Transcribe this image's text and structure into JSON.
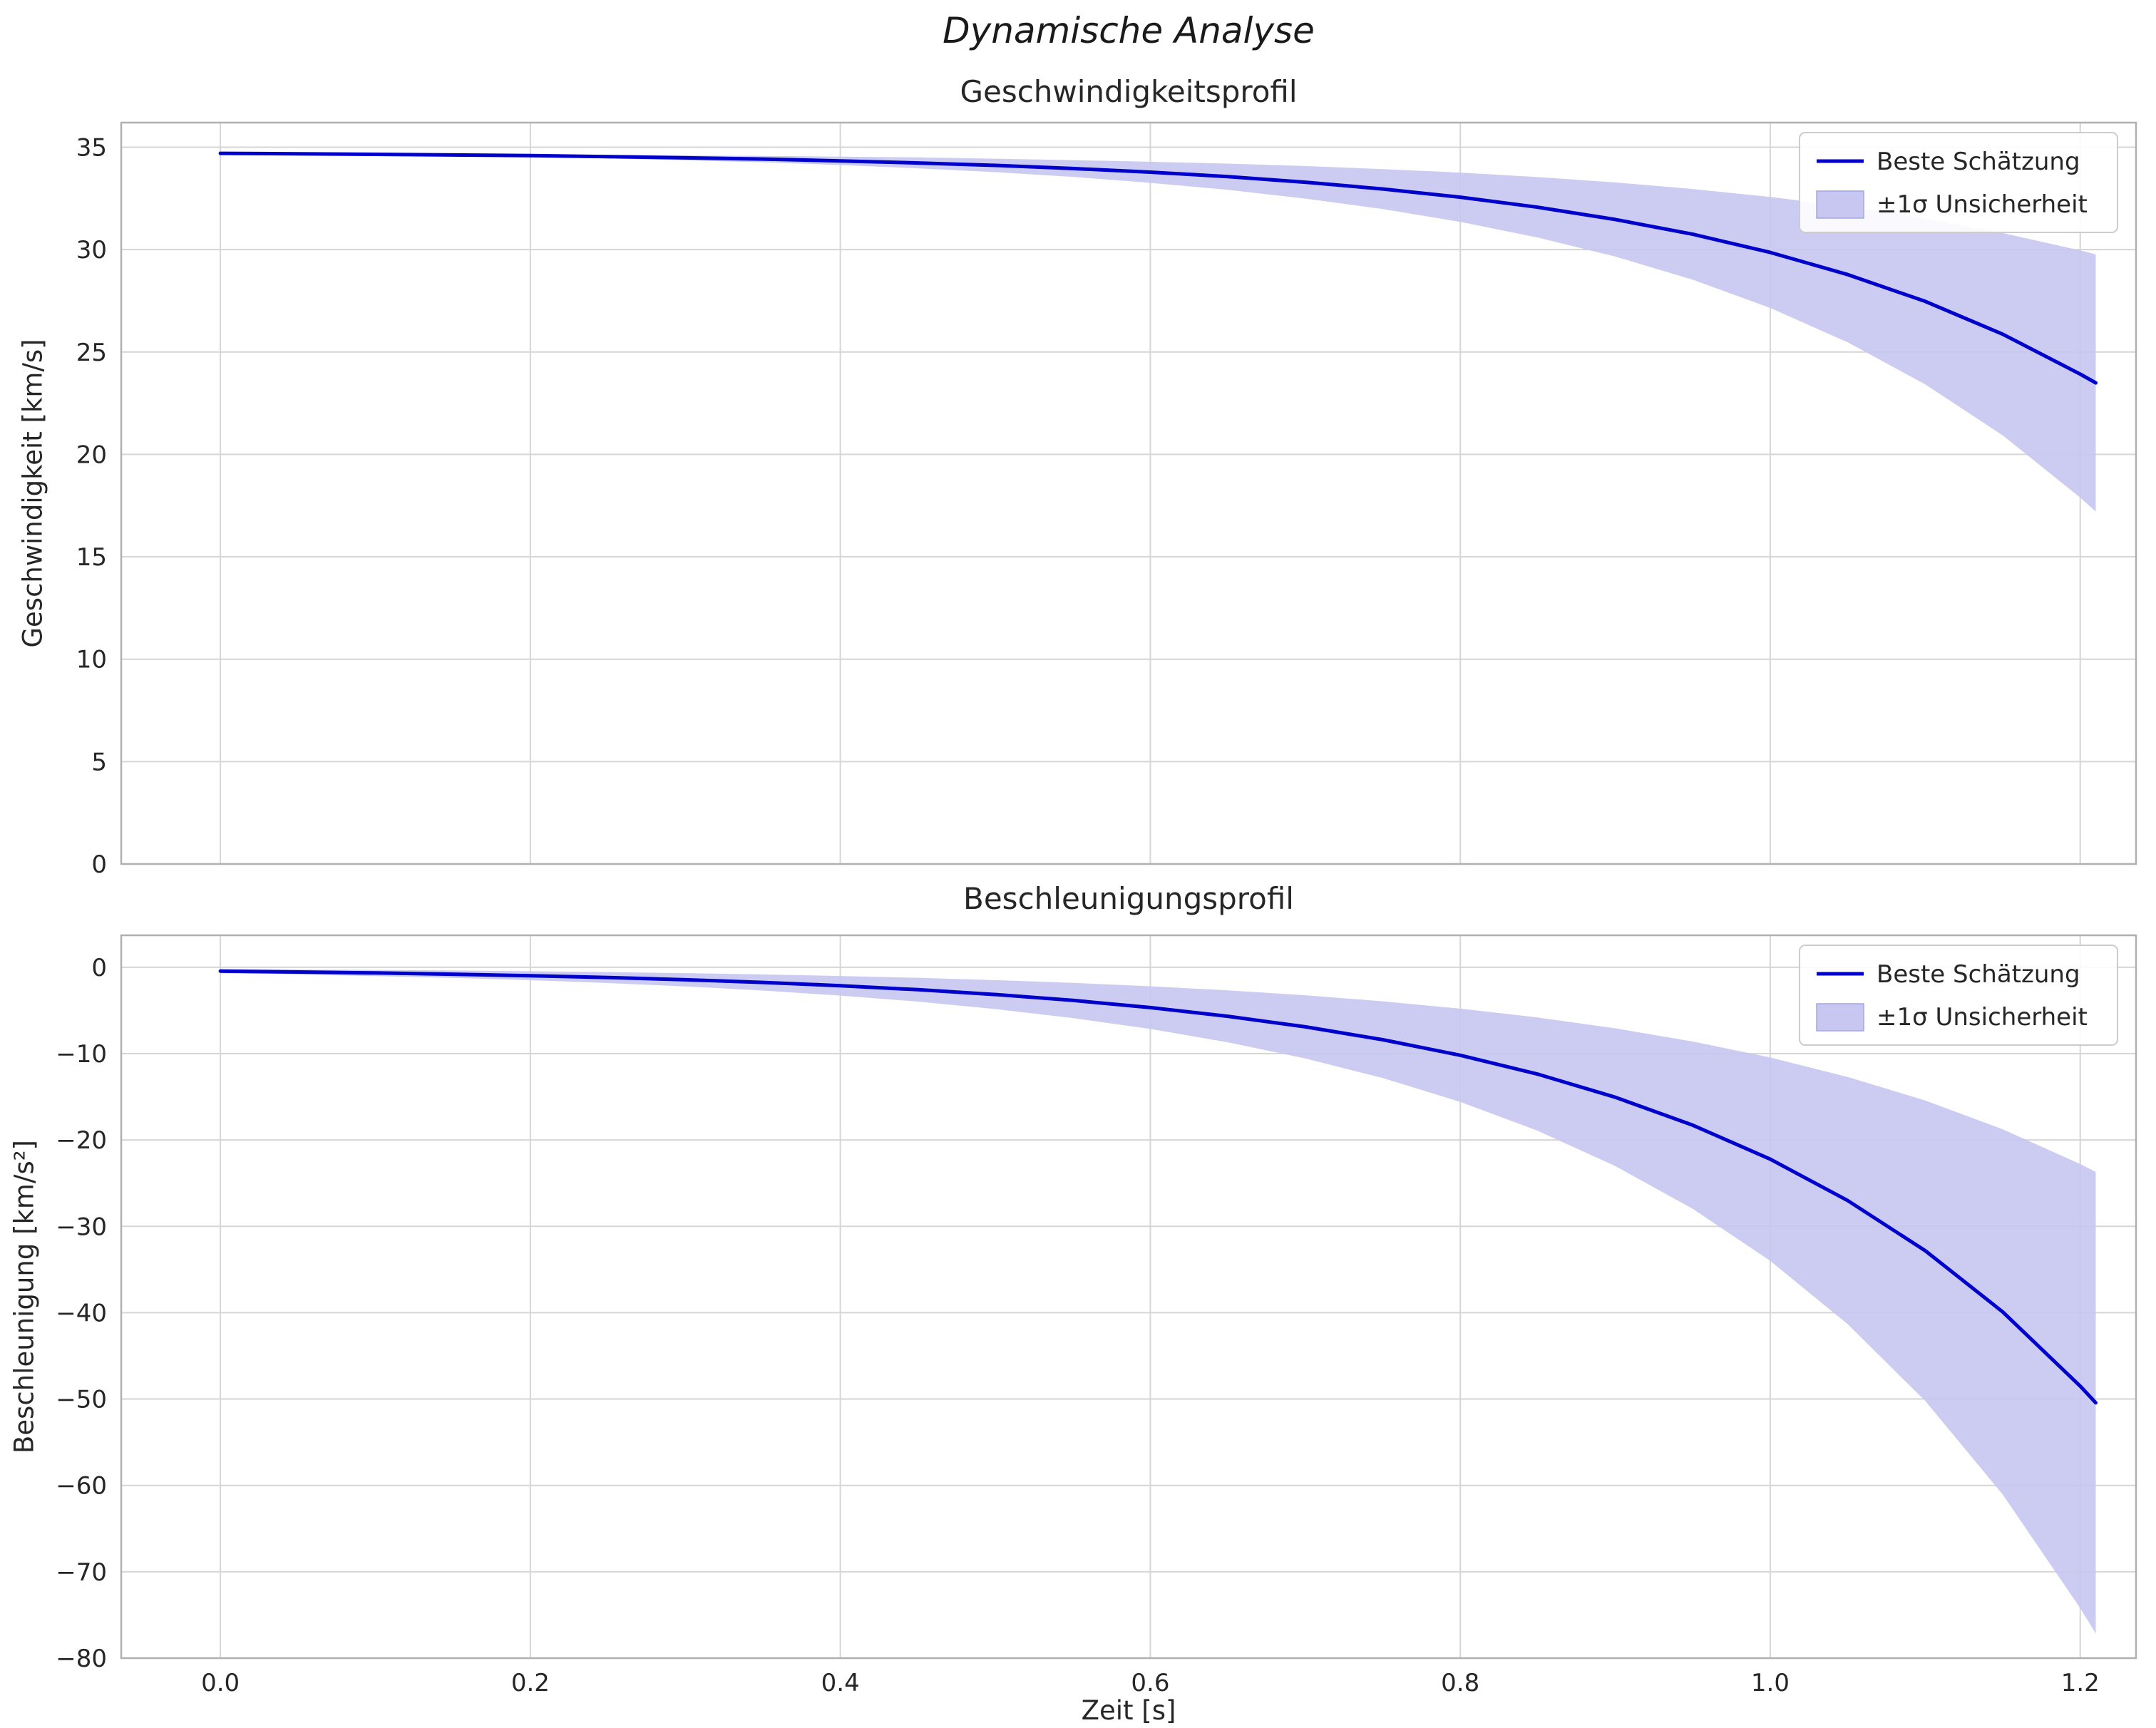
{
  "figure": {
    "title": "Dynamische Analyse"
  },
  "chart_data": [
    {
      "type": "line",
      "title": "Geschwindigkeitsprofil",
      "ylabel": "Geschwindigkeit [km/s]",
      "xlabel": "",
      "legend": [
        "Beste Schätzung",
        "±1σ Unsicherheit"
      ],
      "legend_position": "upper right",
      "grid": true,
      "line_color": "#0000cc",
      "band_color": "#c7c7f2",
      "band_edge_color": "#a4a4e6",
      "xlim": [
        -0.064,
        1.236
      ],
      "ylim": [
        0,
        36.2
      ],
      "xticks": [
        0.0,
        0.2,
        0.4,
        0.6,
        0.8,
        1.0,
        1.2
      ],
      "xtick_labels": [
        "0.0",
        "0.2",
        "0.4",
        "0.6",
        "0.8",
        "1.0",
        "1.2"
      ],
      "yticks": [
        0,
        5,
        10,
        15,
        20,
        25,
        30,
        35
      ],
      "ytick_labels": [
        "0",
        "5",
        "10",
        "15",
        "20",
        "25",
        "30",
        "35"
      ],
      "x": [
        0,
        0.05,
        0.1,
        0.15,
        0.2,
        0.25,
        0.3,
        0.35,
        0.4,
        0.45,
        0.5,
        0.55,
        0.6,
        0.65,
        0.7,
        0.75,
        0.8,
        0.85,
        0.9,
        0.95,
        1.0,
        1.05,
        1.1,
        1.15,
        1.2,
        1.21
      ],
      "series": [
        {
          "name": "Beste Schätzung",
          "role": "line",
          "values": [
            34.7,
            34.68,
            34.65,
            34.62,
            34.59,
            34.54,
            34.48,
            34.42,
            34.33,
            34.23,
            34.11,
            33.96,
            33.78,
            33.56,
            33.29,
            32.96,
            32.56,
            32.07,
            31.47,
            30.75,
            29.86,
            28.78,
            27.47,
            25.87,
            23.92,
            23.49
          ]
        },
        {
          "name": "±1σ obere Grenze",
          "role": "band_upper",
          "values": [
            34.7,
            34.69,
            34.68,
            34.67,
            34.65,
            34.63,
            34.6,
            34.57,
            34.54,
            34.5,
            34.44,
            34.37,
            34.29,
            34.2,
            34.08,
            33.93,
            33.76,
            33.54,
            33.28,
            32.96,
            32.57,
            32.1,
            31.52,
            30.81,
            29.96,
            29.77
          ]
        },
        {
          "name": "±1σ untere Grenze",
          "role": "band_lower",
          "values": [
            34.7,
            34.67,
            34.63,
            34.58,
            34.52,
            34.45,
            34.36,
            34.26,
            34.13,
            33.97,
            33.78,
            33.55,
            33.26,
            32.92,
            32.49,
            31.98,
            31.35,
            30.59,
            29.66,
            28.53,
            27.15,
            25.47,
            23.42,
            20.93,
            17.89,
            17.21
          ]
        }
      ]
    },
    {
      "type": "line",
      "title": "Beschleunigungsprofil",
      "ylabel": "Beschleunigung [km/s²]",
      "xlabel": "Zeit [s]",
      "legend": [
        "Beste Schätzung",
        "±1σ Unsicherheit"
      ],
      "legend_position": "upper right",
      "grid": true,
      "line_color": "#0000cc",
      "band_color": "#c7c7f2",
      "band_edge_color": "#a4a4e6",
      "xlim": [
        -0.064,
        1.236
      ],
      "ylim": [
        -80,
        3.7
      ],
      "xticks": [
        0.0,
        0.2,
        0.4,
        0.6,
        0.8,
        1.0,
        1.2
      ],
      "xtick_labels": [
        "0.0",
        "0.2",
        "0.4",
        "0.6",
        "0.8",
        "1.0",
        "1.2"
      ],
      "yticks": [
        -80,
        -70,
        -60,
        -50,
        -40,
        -30,
        -20,
        -10,
        0
      ],
      "ytick_labels": [
        "−80",
        "−70",
        "−60",
        "−50",
        "−40",
        "−30",
        "−20",
        "−10",
        "0"
      ],
      "x": [
        0,
        0.05,
        0.1,
        0.15,
        0.2,
        0.25,
        0.3,
        0.35,
        0.4,
        0.45,
        0.5,
        0.55,
        0.6,
        0.65,
        0.7,
        0.75,
        0.8,
        0.85,
        0.9,
        0.95,
        1.0,
        1.05,
        1.1,
        1.15,
        1.2,
        1.21
      ],
      "series": [
        {
          "name": "Beste Schätzung",
          "role": "line",
          "values": [
            -0.45,
            -0.55,
            -0.66,
            -0.81,
            -0.98,
            -1.19,
            -1.45,
            -1.76,
            -2.14,
            -2.6,
            -3.16,
            -3.84,
            -4.67,
            -5.68,
            -6.9,
            -8.39,
            -10.19,
            -12.38,
            -15.05,
            -18.29,
            -22.23,
            -27.02,
            -32.83,
            -39.91,
            -48.5,
            -50.43
          ]
        },
        {
          "name": "±1σ obere Grenze",
          "role": "band_upper",
          "values": [
            -0.21,
            -0.26,
            -0.31,
            -0.38,
            -0.46,
            -0.56,
            -0.68,
            -0.83,
            -1.01,
            -1.22,
            -1.49,
            -1.81,
            -2.2,
            -2.67,
            -3.24,
            -3.94,
            -4.79,
            -5.82,
            -7.07,
            -8.6,
            -10.45,
            -12.7,
            -15.43,
            -18.76,
            -22.79,
            -23.7
          ]
        },
        {
          "name": "±1σ untere Grenze",
          "role": "band_lower",
          "values": [
            -0.69,
            -0.84,
            -1.02,
            -1.24,
            -1.5,
            -1.83,
            -2.22,
            -2.7,
            -3.28,
            -3.98,
            -4.84,
            -5.88,
            -7.15,
            -8.69,
            -10.56,
            -12.83,
            -15.59,
            -18.94,
            -23.03,
            -27.98,
            -34.01,
            -41.34,
            -50.23,
            -61.06,
            -74.21,
            -77.16
          ]
        }
      ]
    }
  ]
}
